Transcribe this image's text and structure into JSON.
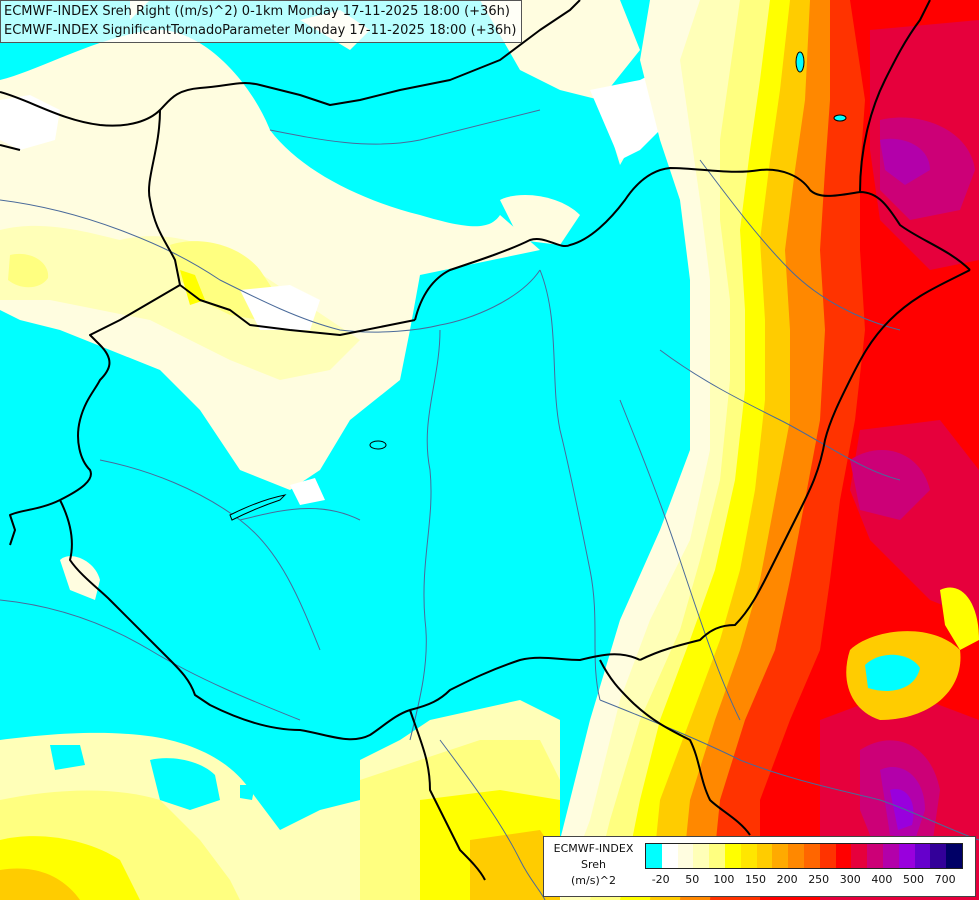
{
  "title": {
    "line1": "ECMWF-INDEX Sreh Right ((m/s)^2) 0-1km Monday 17-11-2025 18:00 (+36h)",
    "line2": "ECMWF-INDEX SignificantTornadoParameter Monday 17-11-2025 18:00 (+36h)"
  },
  "legend": {
    "source": "ECMWF-INDEX",
    "variable": "Sreh",
    "unit": "(m/s)^2",
    "colors": [
      "#00ffff",
      "#ffffff",
      "#fffde0",
      "#ffffb8",
      "#ffff80",
      "#ffff00",
      "#ffe600",
      "#ffcc00",
      "#ffaa00",
      "#ff8800",
      "#ff6600",
      "#ff3300",
      "#ff0000",
      "#e6003c",
      "#cc0077",
      "#b300aa",
      "#9900dd",
      "#6600cc",
      "#330099",
      "#000066"
    ],
    "ticks": [
      "-20",
      "50",
      "100",
      "150",
      "200",
      "250",
      "300",
      "400",
      "500",
      "700"
    ]
  },
  "colors": {
    "cyan": "#00ffff",
    "border": "#000000",
    "river": "#4a6a9a"
  }
}
